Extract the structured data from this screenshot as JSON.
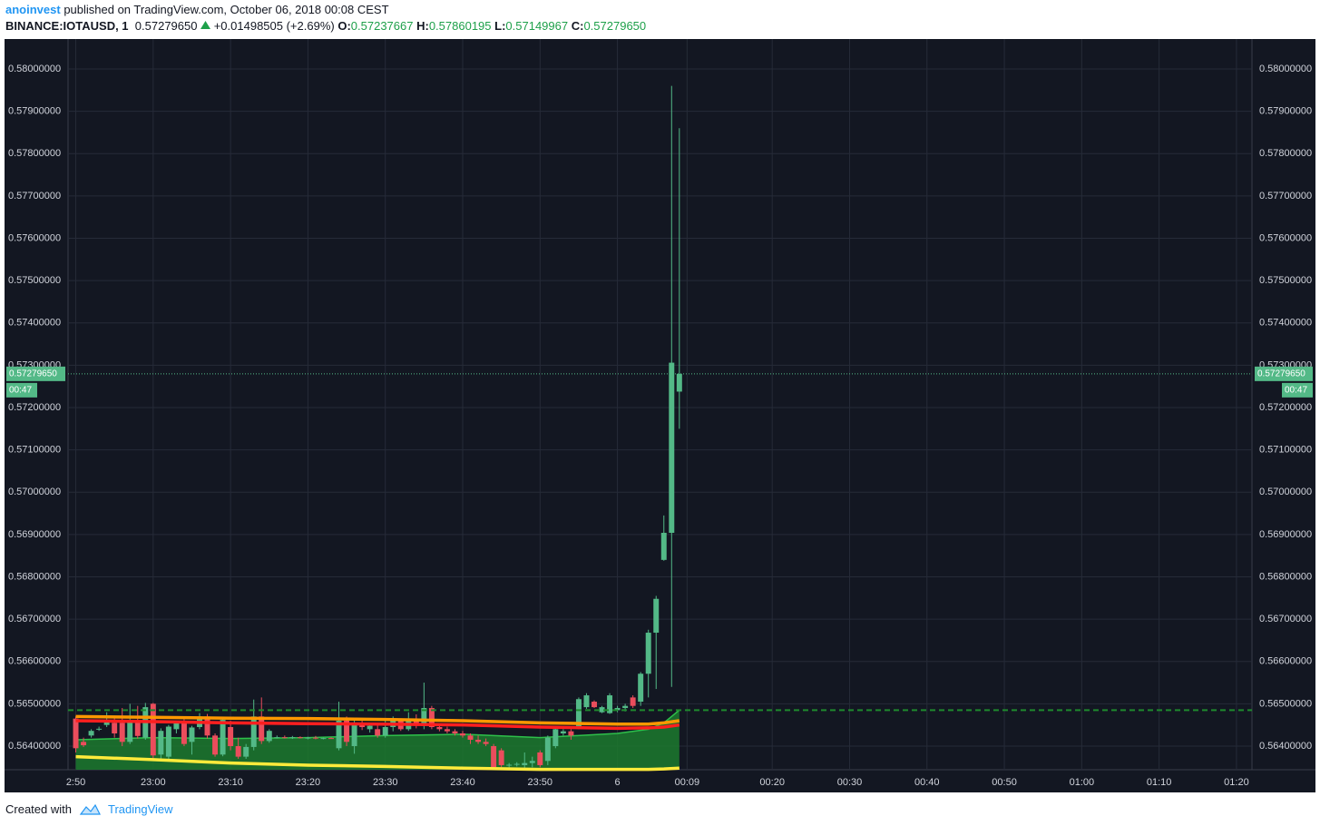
{
  "chart_data": {
    "type": "candlestick",
    "header": {
      "author": "anoinvest",
      "published": "published on TradingView.com, October 06, 2018 00:08 CEST",
      "symbol": "BINANCE:IOTAUSD, 1",
      "last": "0.57279650",
      "change": "+0.01498505 (+2.69%)",
      "open": {
        "label": "O:",
        "value": "0.57237667"
      },
      "high": {
        "label": "H:",
        "value": "0.57860195"
      },
      "low": {
        "label": "L:",
        "value": "0.57149967"
      },
      "close": {
        "label": "C:",
        "value": "0.57279650"
      }
    },
    "x": [
      "22:50",
      "22:51",
      "22:52",
      "22:53",
      "22:54",
      "22:55",
      "22:56",
      "22:57",
      "22:58",
      "22:59",
      "23:00",
      "23:01",
      "23:02",
      "23:03",
      "23:04",
      "23:05",
      "23:06",
      "23:07",
      "23:08",
      "23:09",
      "23:10",
      "23:11",
      "23:12",
      "23:13",
      "23:14",
      "23:15",
      "23:16",
      "23:17",
      "23:18",
      "23:19",
      "23:20",
      "23:21",
      "23:22",
      "23:23",
      "23:24",
      "23:25",
      "23:26",
      "23:27",
      "23:28",
      "23:29",
      "23:30",
      "23:31",
      "23:32",
      "23:33",
      "23:34",
      "23:35",
      "23:36",
      "23:37",
      "23:38",
      "23:39",
      "23:40",
      "23:41",
      "23:42",
      "23:43",
      "23:44",
      "23:45",
      "23:46",
      "23:47",
      "23:48",
      "23:49",
      "23:50",
      "23:51",
      "23:52",
      "23:53",
      "23:54",
      "23:55",
      "23:56",
      "23:57",
      "23:58",
      "23:59",
      "00:00",
      "00:01",
      "00:02",
      "00:03",
      "00:04",
      "00:05",
      "00:06",
      "00:07",
      "00:08"
    ],
    "ohlc": [
      [
        0.56465,
        0.5647,
        0.56385,
        0.56395
      ],
      [
        0.5641,
        0.5642,
        0.56398,
        0.56402
      ],
      [
        0.56425,
        0.5644,
        0.5642,
        0.56436
      ],
      [
        0.5644,
        0.56446,
        0.56436,
        0.56441
      ],
      [
        0.5645,
        0.5648,
        0.56445,
        0.56456
      ],
      [
        0.56455,
        0.56468,
        0.5642,
        0.5643
      ],
      [
        0.56455,
        0.5649,
        0.564,
        0.5641
      ],
      [
        0.5641,
        0.565,
        0.56405,
        0.56462
      ],
      [
        0.56455,
        0.56495,
        0.56418,
        0.56424
      ],
      [
        0.5642,
        0.56502,
        0.56415,
        0.56492
      ],
      [
        0.565,
        0.56502,
        0.5637,
        0.56378
      ],
      [
        0.5638,
        0.56442,
        0.56368,
        0.56436
      ],
      [
        0.56375,
        0.5645,
        0.5637,
        0.56446
      ],
      [
        0.5644,
        0.5646,
        0.5643,
        0.56455
      ],
      [
        0.5646,
        0.56465,
        0.564,
        0.56405
      ],
      [
        0.5641,
        0.56448,
        0.5638,
        0.56444
      ],
      [
        0.56445,
        0.56478,
        0.5644,
        0.5647
      ],
      [
        0.5647,
        0.56476,
        0.56418,
        0.56425
      ],
      [
        0.56425,
        0.5643,
        0.56375,
        0.5638
      ],
      [
        0.5638,
        0.56468,
        0.56376,
        0.56462
      ],
      [
        0.56445,
        0.5646,
        0.5639,
        0.564
      ],
      [
        0.564,
        0.5642,
        0.5637,
        0.56375
      ],
      [
        0.56375,
        0.56405,
        0.5637,
        0.56398
      ],
      [
        0.56398,
        0.5651,
        0.5639,
        0.5647
      ],
      [
        0.5647,
        0.56515,
        0.56405,
        0.56412
      ],
      [
        0.56412,
        0.5644,
        0.56408,
        0.56436
      ],
      [
        0.5642,
        0.56425,
        0.56418,
        0.56421
      ],
      [
        0.56421,
        0.56425,
        0.56418,
        0.5642
      ],
      [
        0.5642,
        0.56424,
        0.56417,
        0.56421
      ],
      [
        0.56421,
        0.56423,
        0.56418,
        0.56419
      ],
      [
        0.56418,
        0.56422,
        0.56416,
        0.5642
      ],
      [
        0.5642,
        0.56424,
        0.56416,
        0.56418
      ],
      [
        0.56418,
        0.5642,
        0.56416,
        0.56419
      ],
      [
        0.56419,
        0.56421,
        0.56417,
        0.56418
      ],
      [
        0.56395,
        0.56505,
        0.5639,
        0.5646
      ],
      [
        0.5646,
        0.5647,
        0.564,
        0.5641
      ],
      [
        0.564,
        0.5646,
        0.56382,
        0.56455
      ],
      [
        0.56455,
        0.56462,
        0.56438,
        0.56445
      ],
      [
        0.5644,
        0.5645,
        0.56432,
        0.56448
      ],
      [
        0.5644,
        0.56452,
        0.5642,
        0.56425
      ],
      [
        0.56425,
        0.56465,
        0.5642,
        0.56445
      ],
      [
        0.56445,
        0.5647,
        0.56435,
        0.5646
      ],
      [
        0.5646,
        0.56462,
        0.56436,
        0.5644
      ],
      [
        0.5644,
        0.5648,
        0.56436,
        0.56465
      ],
      [
        0.56465,
        0.56475,
        0.56442,
        0.56448
      ],
      [
        0.56448,
        0.5655,
        0.5644,
        0.5649
      ],
      [
        0.5649,
        0.56495,
        0.5644,
        0.56445
      ],
      [
        0.56445,
        0.5645,
        0.56435,
        0.5644
      ],
      [
        0.5644,
        0.56446,
        0.5643,
        0.56435
      ],
      [
        0.56435,
        0.5644,
        0.56425,
        0.5643
      ],
      [
        0.5643,
        0.56436,
        0.5642,
        0.56425
      ],
      [
        0.56425,
        0.5643,
        0.56405,
        0.56415
      ],
      [
        0.56415,
        0.56425,
        0.56405,
        0.5641
      ],
      [
        0.5641,
        0.56418,
        0.564,
        0.56405
      ],
      [
        0.564,
        0.56405,
        0.56345,
        0.5635
      ],
      [
        0.5639,
        0.56395,
        0.5635,
        0.56355
      ],
      [
        0.56355,
        0.5636,
        0.5635,
        0.56356
      ],
      [
        0.56356,
        0.56362,
        0.56352,
        0.56358
      ],
      [
        0.56355,
        0.56385,
        0.56348,
        0.5636
      ],
      [
        0.5636,
        0.56375,
        0.5635,
        0.56365
      ],
      [
        0.56385,
        0.5639,
        0.5635,
        0.56355
      ],
      [
        0.56365,
        0.56425,
        0.56355,
        0.5642
      ],
      [
        0.564,
        0.56445,
        0.56395,
        0.5644
      ],
      [
        0.5643,
        0.5644,
        0.56425,
        0.56435
      ],
      [
        0.56435,
        0.5644,
        0.56415,
        0.56425
      ],
      [
        0.56447,
        0.56515,
        0.5644,
        0.56511
      ],
      [
        0.56492,
        0.56525,
        0.56488,
        0.5652
      ],
      [
        0.56505,
        0.56508,
        0.5649,
        0.56492
      ],
      [
        0.5648,
        0.56495,
        0.56478,
        0.56492
      ],
      [
        0.56478,
        0.56525,
        0.56476,
        0.5652
      ],
      [
        0.56485,
        0.56495,
        0.5648,
        0.5649
      ],
      [
        0.5649,
        0.565,
        0.56482,
        0.56495
      ],
      [
        0.56515,
        0.5652,
        0.5649,
        0.56495
      ],
      [
        0.56505,
        0.56575,
        0.56495,
        0.56571
      ],
      [
        0.56571,
        0.56675,
        0.56515,
        0.56668
      ],
      [
        0.56668,
        0.56755,
        0.56535,
        0.56748
      ],
      [
        0.5684,
        0.56945,
        0.56838,
        0.56904
      ],
      [
        0.56904,
        0.5796,
        0.5654,
        0.57306
      ],
      [
        0.57237667,
        0.57860195,
        0.57149967,
        0.5727965
      ]
    ],
    "up_color": "#53b987",
    "down_color": "#eb4d5c",
    "overlay_x": [
      "22:50",
      "23:00",
      "23:10",
      "23:20",
      "23:30",
      "23:40",
      "23:50",
      "00:00",
      "00:04",
      "00:06",
      "00:08"
    ],
    "band": {
      "color": "#1c7a2e",
      "line_color": "#2ec04a",
      "values": [
        0.56415,
        0.5642,
        0.56418,
        0.5642,
        0.56425,
        0.56428,
        0.5642,
        0.5643,
        0.5644,
        0.56455,
        0.56485
      ]
    },
    "lines": [
      {
        "color": "#ff9800",
        "values": [
          0.5647,
          0.56468,
          0.56466,
          0.56465,
          0.56463,
          0.5646,
          0.56455,
          0.56452,
          0.56452,
          0.56455,
          0.5646
        ]
      },
      {
        "color": "#ff1f1f",
        "values": [
          0.5646,
          0.56458,
          0.56455,
          0.56453,
          0.56452,
          0.5645,
          0.56445,
          0.56442,
          0.56443,
          0.56445,
          0.5645
        ]
      },
      {
        "color": "#ffeb3b",
        "values": [
          0.56375,
          0.56368,
          0.5636,
          0.56355,
          0.56352,
          0.56348,
          0.56345,
          0.56345,
          0.56345,
          0.56346,
          0.56348
        ]
      }
    ],
    "level": 0.56485,
    "level_color": "#1f8a2e",
    "last_price": {
      "value": 0.5727965,
      "label": "0.57279650"
    },
    "countdown": "00:47",
    "last_color": "#53b987",
    "ylim": [
      0.563442,
      0.580708
    ],
    "yticks": [
      {
        "value": 0.564,
        "label": "0.56400000"
      },
      {
        "value": 0.565,
        "label": "0.56500000"
      },
      {
        "value": 0.566,
        "label": "0.56600000"
      },
      {
        "value": 0.567,
        "label": "0.56700000"
      },
      {
        "value": 0.568,
        "label": "0.56800000"
      },
      {
        "value": 0.569,
        "label": "0.56900000"
      },
      {
        "value": 0.57,
        "label": "0.57000000"
      },
      {
        "value": 0.571,
        "label": "0.57100000"
      },
      {
        "value": 0.572,
        "label": "0.57200000"
      },
      {
        "value": 0.573,
        "label": "0.57300000"
      },
      {
        "value": 0.574,
        "label": "0.57400000"
      },
      {
        "value": 0.575,
        "label": "0.57500000"
      },
      {
        "value": 0.576,
        "label": "0.57600000"
      },
      {
        "value": 0.577,
        "label": "0.57700000"
      },
      {
        "value": 0.578,
        "label": "0.57800000"
      },
      {
        "value": 0.579,
        "label": "0.57900000"
      },
      {
        "value": 0.58,
        "label": "0.58000000"
      }
    ],
    "xlim": [
      "22:49",
      "01:22"
    ],
    "xticks": [
      {
        "value": "22:50",
        "label": "2:50"
      },
      {
        "value": "23:00",
        "label": "23:00"
      },
      {
        "value": "23:10",
        "label": "23:10"
      },
      {
        "value": "23:20",
        "label": "23:20"
      },
      {
        "value": "23:30",
        "label": "23:30"
      },
      {
        "value": "23:40",
        "label": "23:40"
      },
      {
        "value": "23:50",
        "label": "23:50"
      },
      {
        "value": "00:00",
        "label": "6"
      },
      {
        "value": "00:09",
        "label": "00:09"
      },
      {
        "value": "00:20",
        "label": "00:20"
      },
      {
        "value": "00:30",
        "label": "00:30"
      },
      {
        "value": "00:40",
        "label": "00:40"
      },
      {
        "value": "00:50",
        "label": "00:50"
      },
      {
        "value": "01:00",
        "label": "01:00"
      },
      {
        "value": "01:10",
        "label": "01:10"
      },
      {
        "value": "01:20",
        "label": "01:20"
      }
    ],
    "grid": true
  },
  "footer": {
    "created": "Created with",
    "brand": "TradingView"
  }
}
